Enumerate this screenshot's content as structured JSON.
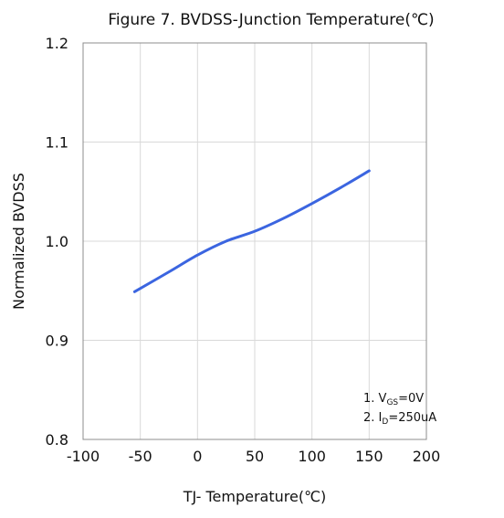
{
  "chart_data": {
    "type": "line",
    "title": "Figure 7. BVDSS-Junction Temperature(℃)",
    "xlabel": "TJ- Temperature(℃)",
    "ylabel": "Normalized BVDSS",
    "xlim": [
      -100,
      200
    ],
    "ylim": [
      0.8,
      1.2
    ],
    "xticks": [
      "-100",
      "-50",
      "0",
      "50",
      "100",
      "150",
      "200"
    ],
    "yticks": [
      "1.2",
      "1.1",
      "1.0",
      "0.9",
      "0.8"
    ],
    "grid": true,
    "series": [
      {
        "color": "#3b65e0",
        "x": [
          -55,
          -25,
          0,
          25,
          50,
          75,
          100,
          125,
          150
        ],
        "y": [
          0.949,
          0.969,
          0.986,
          1.0,
          1.01,
          1.023,
          1.038,
          1.054,
          1.071
        ]
      }
    ],
    "annotation": {
      "line1": {
        "prefix": "1. V",
        "sub": "GS",
        "suffix": "=0V"
      },
      "line2": {
        "prefix": "2. I",
        "sub": "D",
        "suffix": "=250uA"
      }
    }
  }
}
